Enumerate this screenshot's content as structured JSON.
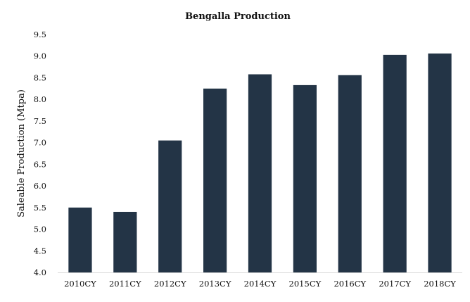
{
  "chart_data": {
    "type": "bar",
    "title": "Bengalla Production",
    "xlabel": "",
    "ylabel": "Saleable Production (Mtpa)",
    "categories": [
      "2010CY",
      "2011CY",
      "2012CY",
      "2013CY",
      "2014CY",
      "2015CY",
      "2016CY",
      "2017CY",
      "2018CY"
    ],
    "values": [
      5.5,
      5.4,
      7.05,
      8.25,
      8.58,
      8.33,
      8.56,
      9.03,
      9.06
    ],
    "ylim": [
      4.0,
      9.5
    ],
    "yticks": [
      "4.0",
      "4.5",
      "5.0",
      "5.5",
      "6.0",
      "6.5",
      "7.0",
      "7.5",
      "8.0",
      "8.5",
      "9.0",
      "9.5"
    ],
    "grid": false,
    "legend": "none",
    "bar_color": "#233446",
    "axis_color": "#d9d9d9"
  }
}
